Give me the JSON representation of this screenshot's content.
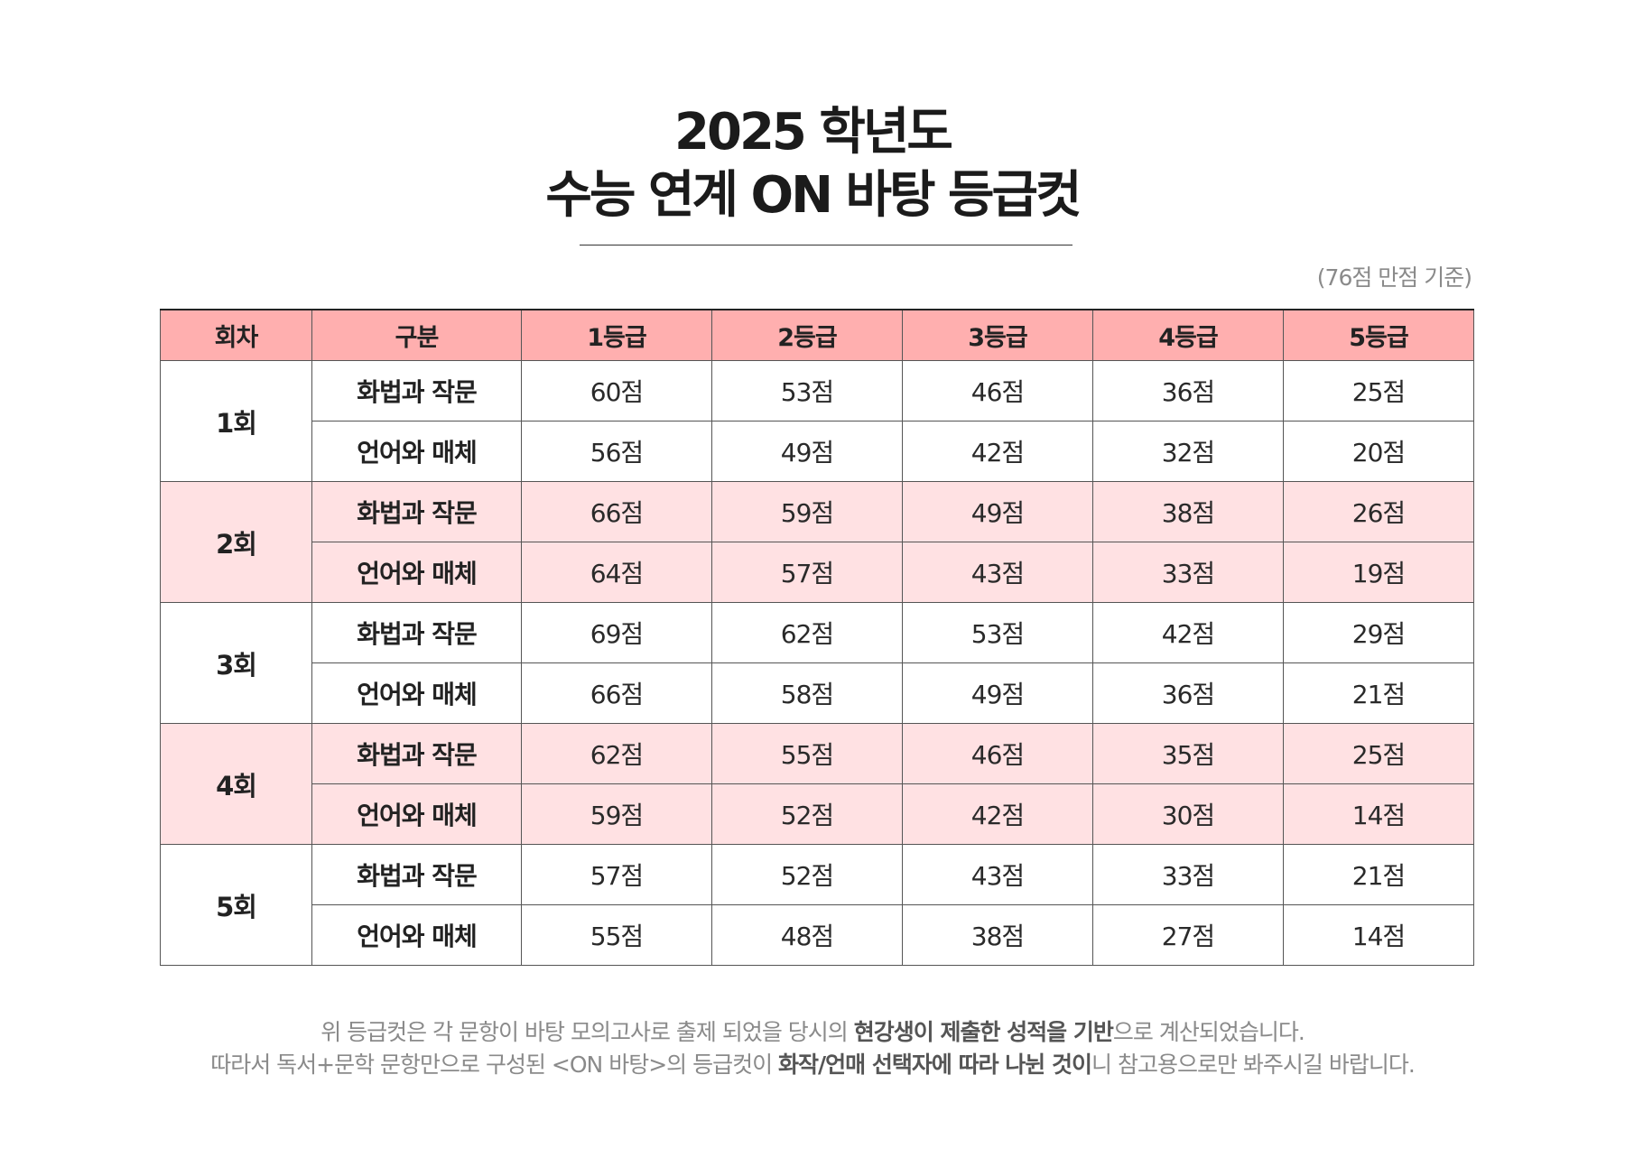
{
  "title": {
    "line1": "2025 학년도",
    "line2": "수능 연계 ON 바탕 등급컷"
  },
  "basis_note": "(76점 만점 기준)",
  "table": {
    "headers": [
      "회차",
      "구분",
      "1등급",
      "2등급",
      "3등급",
      "4등급",
      "5등급"
    ],
    "rounds": [
      {
        "label": "1회",
        "rows": [
          {
            "type": "화법과 작문",
            "scores": [
              "60점",
              "53점",
              "46점",
              "36점",
              "25점"
            ]
          },
          {
            "type": "언어와 매체",
            "scores": [
              "56점",
              "49점",
              "42점",
              "32점",
              "20점"
            ]
          }
        ]
      },
      {
        "label": "2회",
        "rows": [
          {
            "type": "화법과 작문",
            "scores": [
              "66점",
              "59점",
              "49점",
              "38점",
              "26점"
            ]
          },
          {
            "type": "언어와 매체",
            "scores": [
              "64점",
              "57점",
              "43점",
              "33점",
              "19점"
            ]
          }
        ]
      },
      {
        "label": "3회",
        "rows": [
          {
            "type": "화법과 작문",
            "scores": [
              "69점",
              "62점",
              "53점",
              "42점",
              "29점"
            ]
          },
          {
            "type": "언어와 매체",
            "scores": [
              "66점",
              "58점",
              "49점",
              "36점",
              "21점"
            ]
          }
        ]
      },
      {
        "label": "4회",
        "rows": [
          {
            "type": "화법과 작문",
            "scores": [
              "62점",
              "55점",
              "46점",
              "35점",
              "25점"
            ]
          },
          {
            "type": "언어와 매체",
            "scores": [
              "59점",
              "52점",
              "42점",
              "30점",
              "14점"
            ]
          }
        ]
      },
      {
        "label": "5회",
        "rows": [
          {
            "type": "화법과 작문",
            "scores": [
              "57점",
              "52점",
              "43점",
              "33점",
              "21점"
            ]
          },
          {
            "type": "언어와 매체",
            "scores": [
              "55점",
              "48점",
              "38점",
              "27점",
              "14점"
            ]
          }
        ]
      }
    ]
  },
  "footnote": {
    "line1_a": "위 등급컷은 각 문항이 바탕 모의고사로 출제 되었을 당시의 ",
    "line1_b": "현강생이 제출한 성적을 기반",
    "line1_c": "으로 계산되었습니다.",
    "line2_a": "따라서 독서+문학 문항만으로 구성된 <ON 바탕>의 등급컷이 ",
    "line2_b": "화작/언매 선택자에 따라 나뉜 것이",
    "line2_c": "니 참고용으로만 봐주시길 바랍니다."
  },
  "colors": {
    "header_bg": "#ffafaf",
    "shaded_row_bg": "#ffe1e3",
    "note_text": "#8a8a8a"
  }
}
